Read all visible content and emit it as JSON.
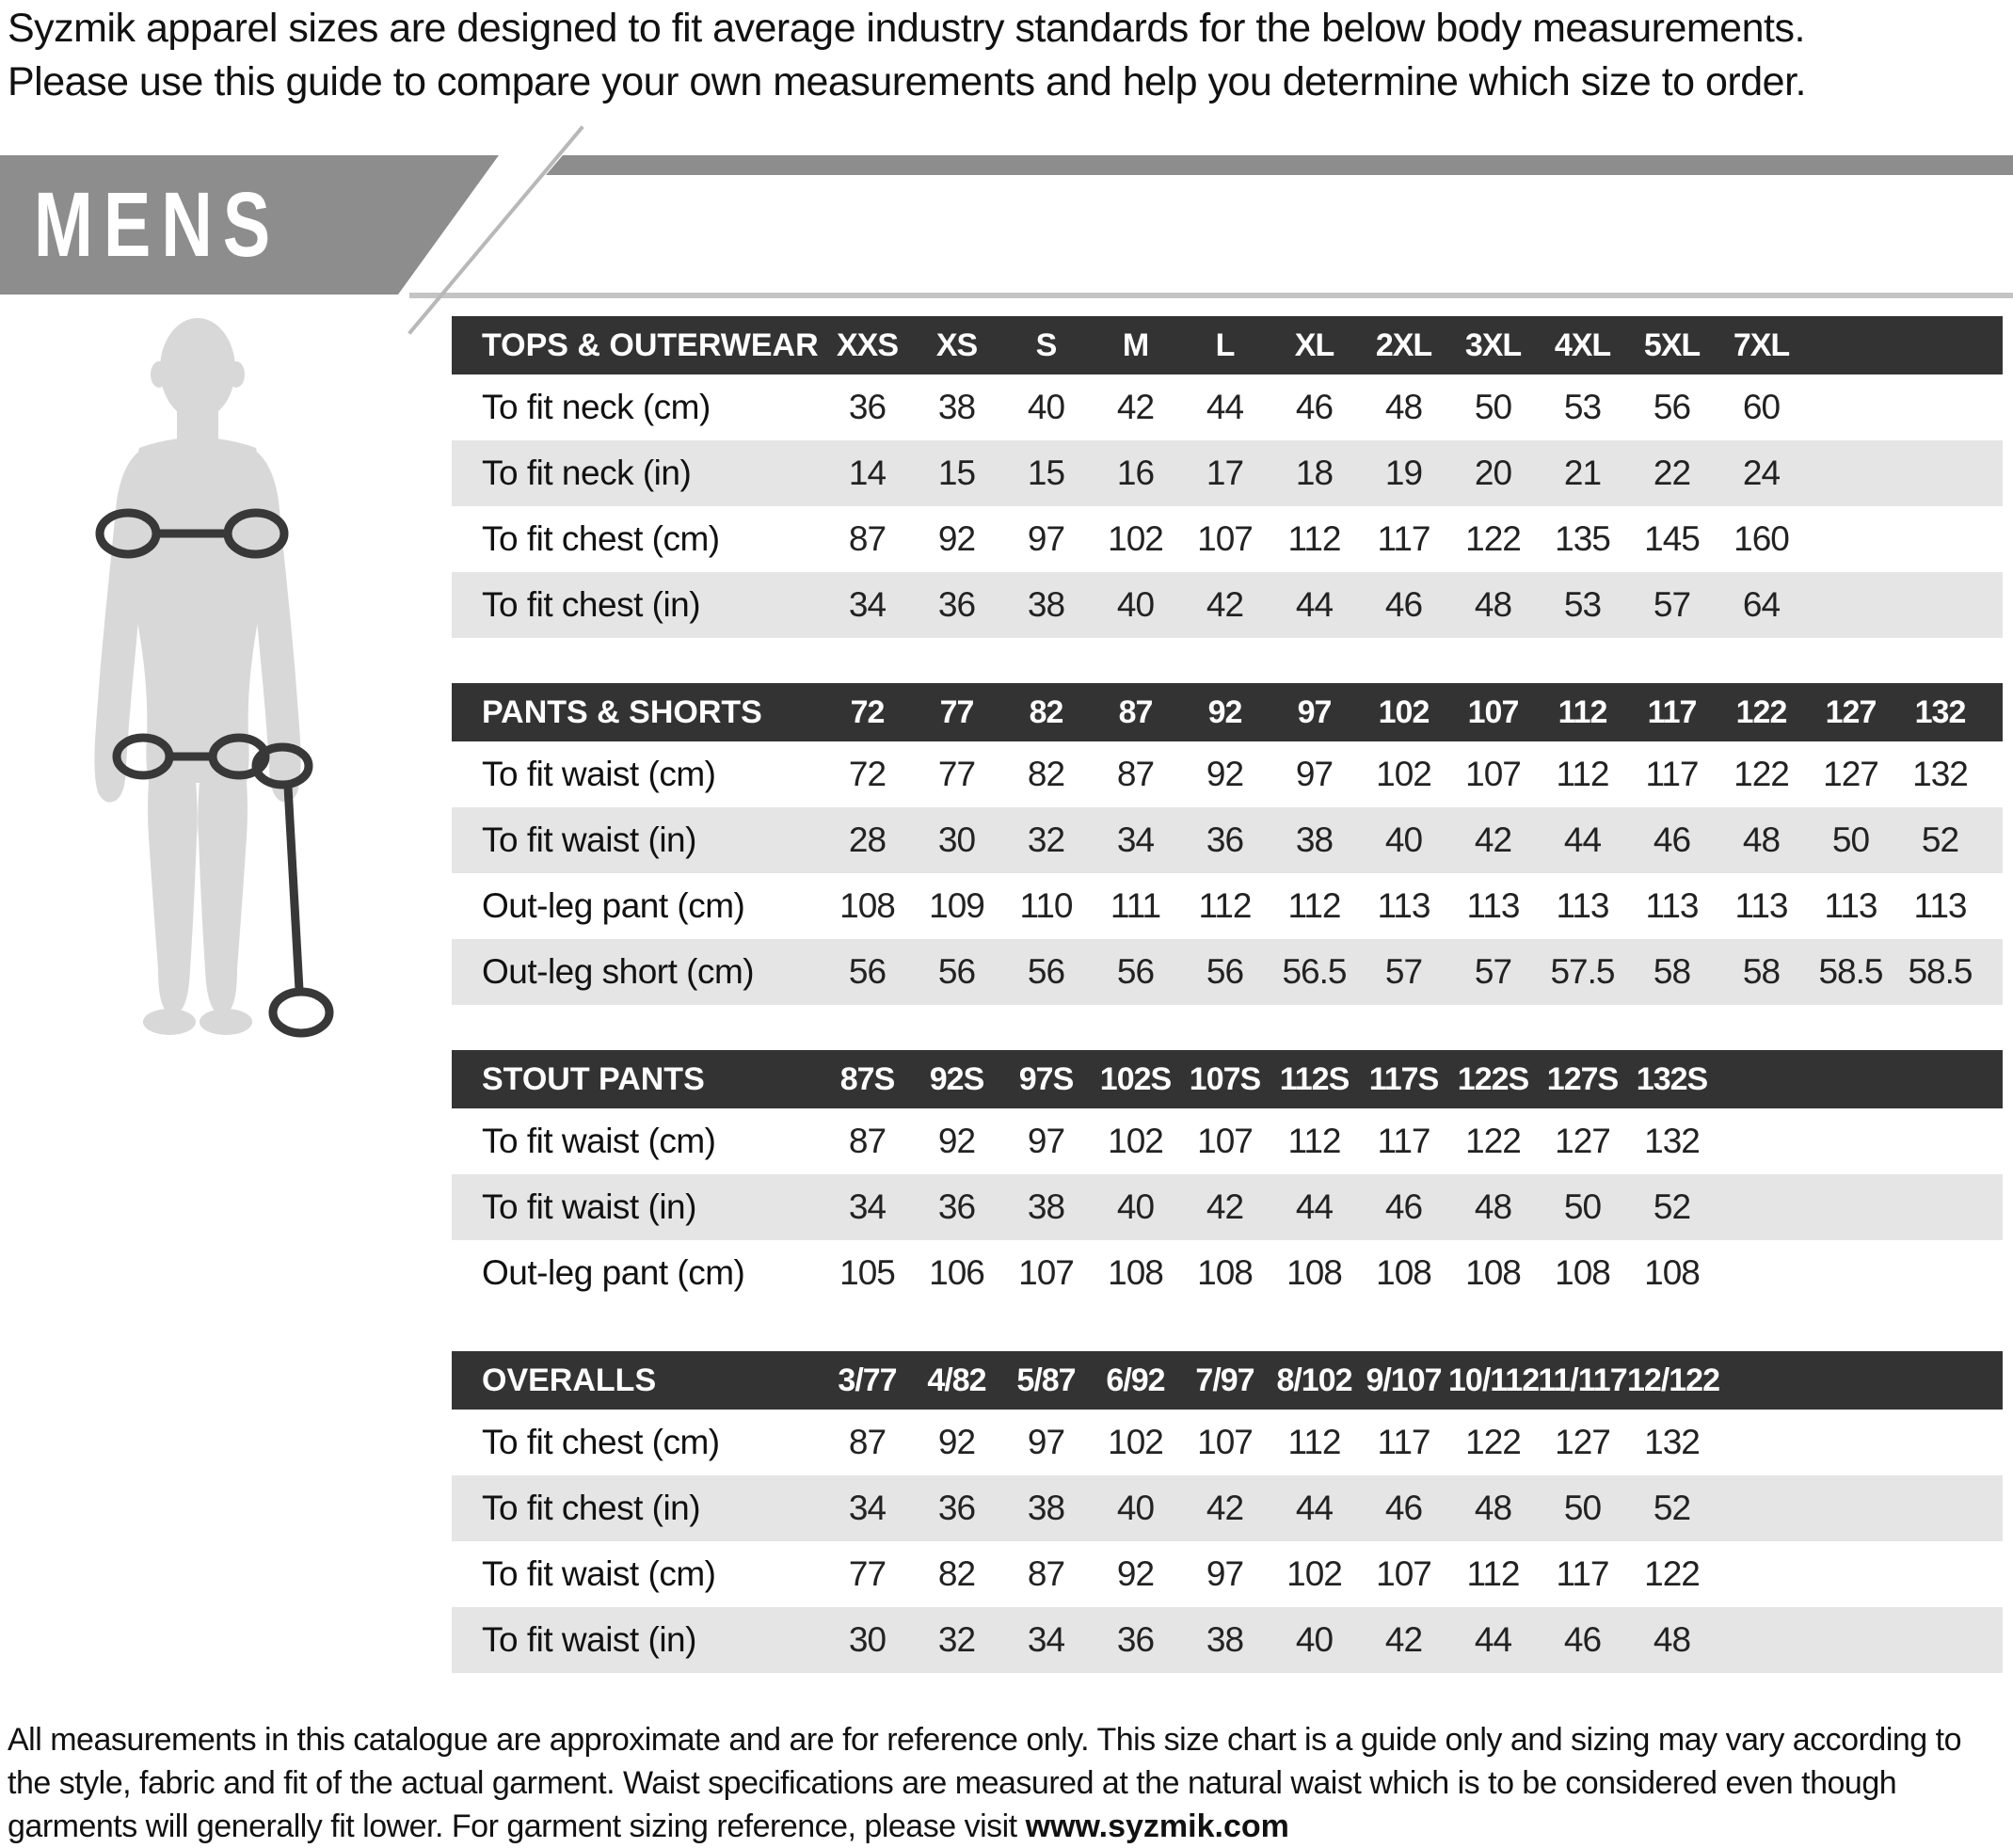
{
  "intro": {
    "line1": "Syzmik apparel sizes are designed to fit average industry standards for the below body measurements.",
    "line2": "Please use this guide to compare your own measurements and help you determine which size to order."
  },
  "banner": {
    "label": "MENS"
  },
  "tables": [
    {
      "title": "TOPS & OUTERWEAR",
      "sizes": [
        "XXS",
        "XS",
        "S",
        "M",
        "L",
        "XL",
        "2XL",
        "3XL",
        "4XL",
        "5XL",
        "7XL"
      ],
      "rows": [
        {
          "label": "To fit neck (cm)",
          "values": [
            "36",
            "38",
            "40",
            "42",
            "44",
            "46",
            "48",
            "50",
            "53",
            "56",
            "60"
          ]
        },
        {
          "label": "To fit neck (in)",
          "values": [
            "14",
            "15",
            "15",
            "16",
            "17",
            "18",
            "19",
            "20",
            "21",
            "22",
            "24"
          ]
        },
        {
          "label": "To fit chest (cm)",
          "values": [
            "87",
            "92",
            "97",
            "102",
            "107",
            "112",
            "117",
            "122",
            "135",
            "145",
            "160"
          ]
        },
        {
          "label": "To fit chest (in)",
          "values": [
            "34",
            "36",
            "38",
            "40",
            "42",
            "44",
            "46",
            "48",
            "53",
            "57",
            "64"
          ]
        }
      ]
    },
    {
      "title": "PANTS & SHORTS",
      "sizes": [
        "72",
        "77",
        "82",
        "87",
        "92",
        "97",
        "102",
        "107",
        "112",
        "117",
        "122",
        "127",
        "132"
      ],
      "rows": [
        {
          "label": "To fit waist (cm)",
          "values": [
            "72",
            "77",
            "82",
            "87",
            "92",
            "97",
            "102",
            "107",
            "112",
            "117",
            "122",
            "127",
            "132"
          ]
        },
        {
          "label": "To fit waist (in)",
          "values": [
            "28",
            "30",
            "32",
            "34",
            "36",
            "38",
            "40",
            "42",
            "44",
            "46",
            "48",
            "50",
            "52"
          ]
        },
        {
          "label": "Out-leg pant (cm)",
          "values": [
            "108",
            "109",
            "110",
            "111",
            "112",
            "112",
            "113",
            "113",
            "113",
            "113",
            "113",
            "113",
            "113"
          ]
        },
        {
          "label": "Out-leg short (cm)",
          "values": [
            "56",
            "56",
            "56",
            "56",
            "56",
            "56.5",
            "57",
            "57",
            "57.5",
            "58",
            "58",
            "58.5",
            "58.5"
          ]
        }
      ]
    },
    {
      "title": "STOUT PANTS",
      "sizes": [
        "87S",
        "92S",
        "97S",
        "102S",
        "107S",
        "112S",
        "117S",
        "122S",
        "127S",
        "132S"
      ],
      "rows": [
        {
          "label": "To fit waist (cm)",
          "values": [
            "87",
            "92",
            "97",
            "102",
            "107",
            "112",
            "117",
            "122",
            "127",
            "132"
          ]
        },
        {
          "label": "To fit waist (in)",
          "values": [
            "34",
            "36",
            "38",
            "40",
            "42",
            "44",
            "46",
            "48",
            "50",
            "52"
          ]
        },
        {
          "label": "Out-leg pant (cm)",
          "values": [
            "105",
            "106",
            "107",
            "108",
            "108",
            "108",
            "108",
            "108",
            "108",
            "108"
          ]
        }
      ]
    },
    {
      "title": "OVERALLS",
      "sizes": [
        "3/77",
        "4/82",
        "5/87",
        "6/92",
        "7/97",
        "8/102",
        "9/107",
        "10/112",
        "11/117",
        "12/122"
      ],
      "rows": [
        {
          "label": "To fit chest (cm)",
          "values": [
            "87",
            "92",
            "97",
            "102",
            "107",
            "112",
            "117",
            "122",
            "127",
            "132"
          ]
        },
        {
          "label": "To fit chest (in)",
          "values": [
            "34",
            "36",
            "38",
            "40",
            "42",
            "44",
            "46",
            "48",
            "50",
            "52"
          ]
        },
        {
          "label": "To fit waist (cm)",
          "values": [
            "77",
            "82",
            "87",
            "92",
            "97",
            "102",
            "107",
            "112",
            "117",
            "122"
          ]
        },
        {
          "label": "To fit waist (in)",
          "values": [
            "30",
            "32",
            "34",
            "36",
            "38",
            "40",
            "42",
            "44",
            "46",
            "48"
          ]
        }
      ]
    }
  ],
  "footer": {
    "text": "All measurements in this catalogue are approximate and are for reference only. This size chart is a guide only and sizing may vary according to the style, fabric and fit of the actual garment. Waist specifications are measured at the natural waist which is to be considered even though garments will generally fit lower. For garment sizing reference, please visit ",
    "link": "www.syzmik.com"
  },
  "colors": {
    "table_header_bar": "#333333",
    "row_alt_band": "#e5e5e5",
    "banner_gray": "#8d8d8d",
    "silhouette_gray": "#d8d8d8",
    "measurement_line": "#383838"
  }
}
